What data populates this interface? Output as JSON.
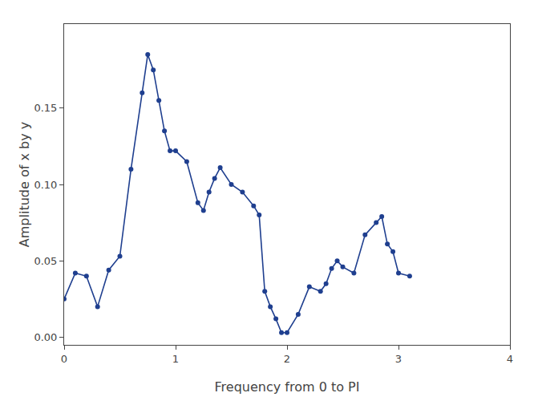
{
  "chart_data": {
    "type": "line",
    "x": [
      0.0,
      0.1,
      0.2,
      0.3,
      0.4,
      0.5,
      0.6,
      0.7,
      0.75,
      0.8,
      0.85,
      0.9,
      0.95,
      1.0,
      1.1,
      1.2,
      1.25,
      1.3,
      1.35,
      1.4,
      1.5,
      1.6,
      1.7,
      1.75,
      1.8,
      1.85,
      1.9,
      1.95,
      2.0,
      2.1,
      2.2,
      2.3,
      2.35,
      2.4,
      2.45,
      2.5,
      2.6,
      2.7,
      2.8,
      2.85,
      2.9,
      2.95,
      3.0,
      3.1
    ],
    "values": [
      0.025,
      0.042,
      0.04,
      0.02,
      0.044,
      0.053,
      0.11,
      0.16,
      0.185,
      0.175,
      0.155,
      0.135,
      0.122,
      0.122,
      0.115,
      0.088,
      0.083,
      0.095,
      0.104,
      0.111,
      0.1,
      0.095,
      0.086,
      0.08,
      0.03,
      0.02,
      0.012,
      0.003,
      0.003,
      0.015,
      0.033,
      0.03,
      0.035,
      0.045,
      0.05,
      0.046,
      0.042,
      0.067,
      0.075,
      0.079,
      0.061,
      0.056,
      0.042,
      0.04
    ],
    "xlabel": "Frequency from 0 to PI",
    "ylabel": "Amplitude of x by y",
    "color": "#1f3f8f",
    "marker": "circle",
    "xlim": [
      0,
      4
    ],
    "ylim": [
      -0.005,
      0.205
    ],
    "xticks": [
      0,
      1,
      2,
      3,
      4
    ],
    "yticks": [
      {
        "value": 0,
        "label": "0.00"
      },
      {
        "value": 0.05,
        "label": "0.05"
      },
      {
        "value": 0.1,
        "label": "0.10"
      },
      {
        "value": 0.15,
        "label": "0.15"
      }
    ],
    "grid": false
  }
}
